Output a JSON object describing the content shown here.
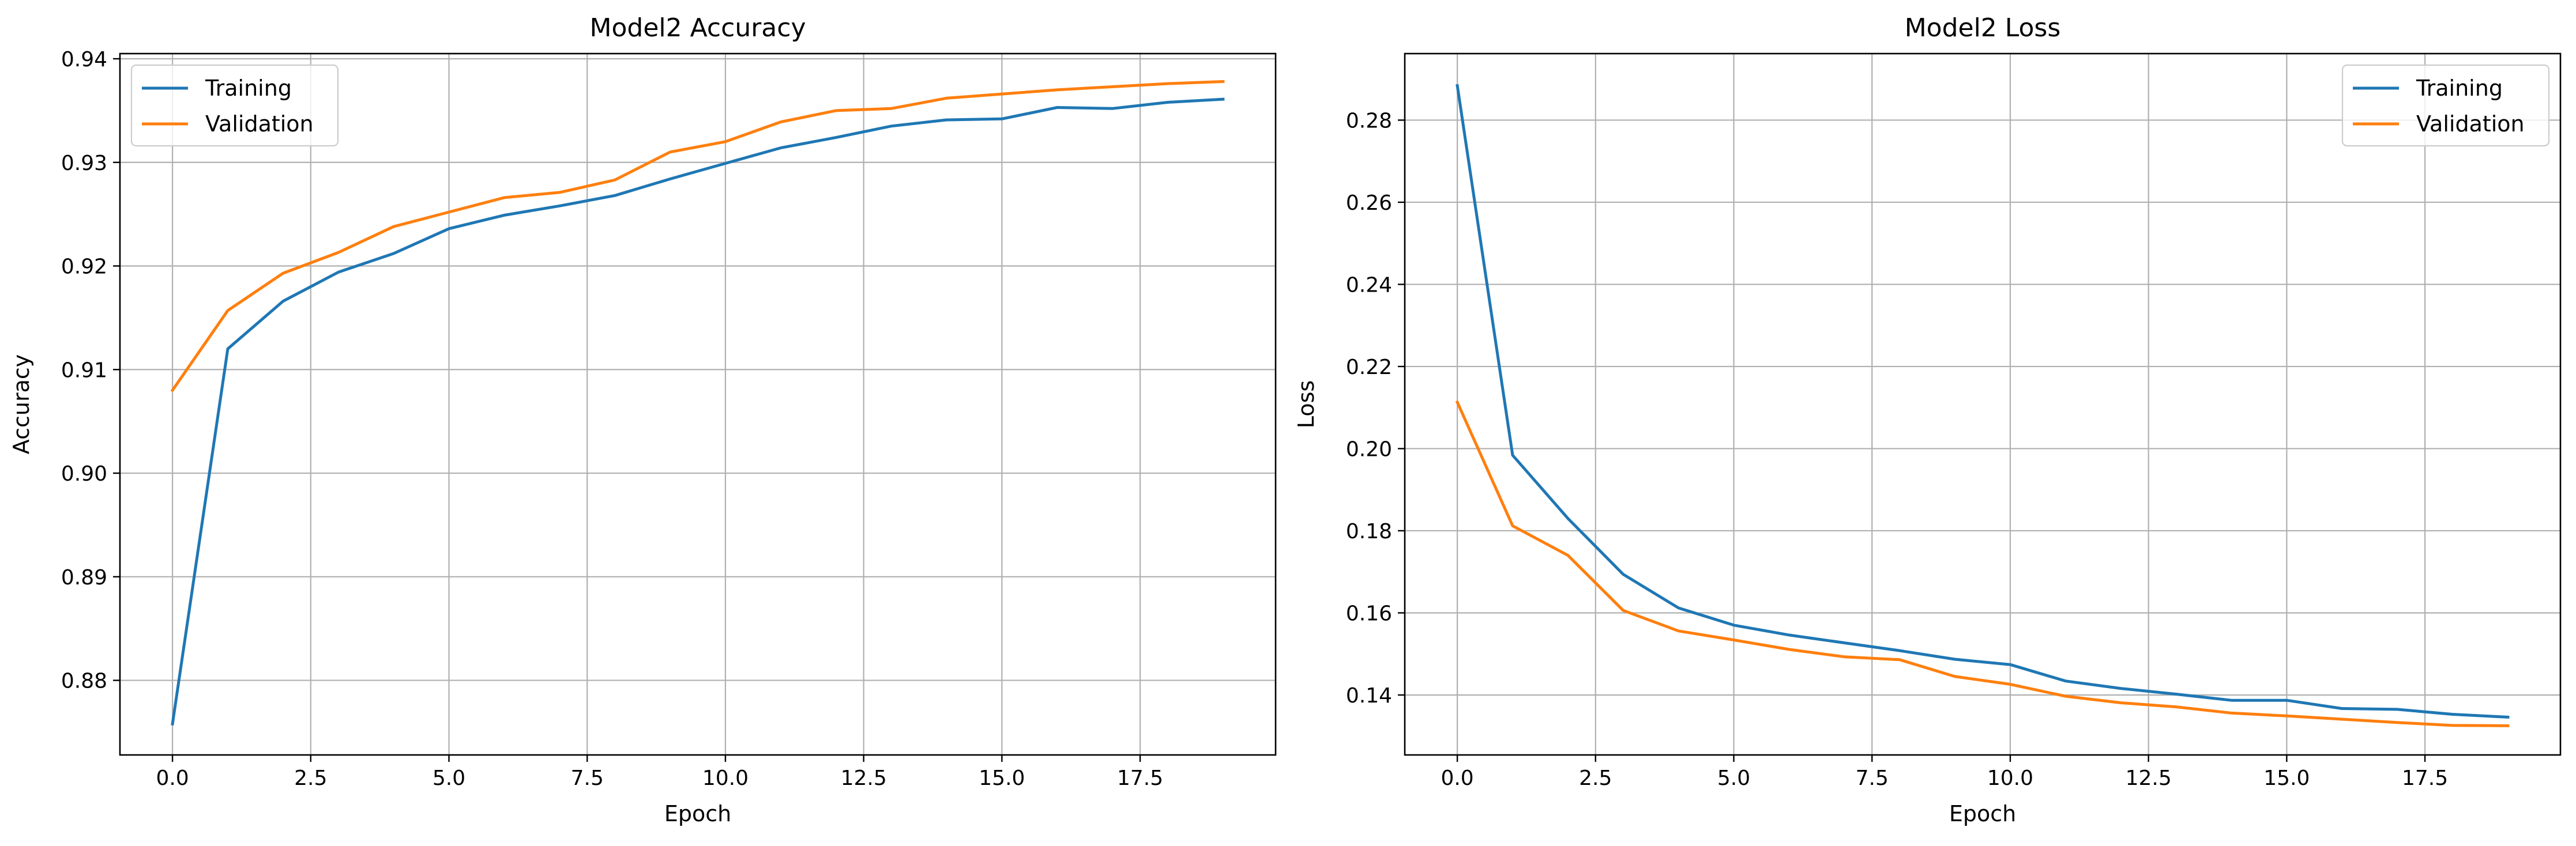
{
  "chart_data": [
    {
      "type": "line",
      "title": "Model2 Accuracy",
      "xlabel": "Epoch",
      "ylabel": "Accuracy",
      "xlim": [
        -0.95,
        19.95
      ],
      "ylim": [
        0.8728,
        0.9405
      ],
      "xticks": [
        0,
        2.5,
        5,
        7.5,
        10,
        12.5,
        15,
        17.5
      ],
      "xtick_labels": [
        "0.0",
        "2.5",
        "5.0",
        "7.5",
        "10.0",
        "12.5",
        "15.0",
        "17.5"
      ],
      "yticks": [
        0.88,
        0.89,
        0.9,
        0.91,
        0.92,
        0.93,
        0.94
      ],
      "ytick_labels": [
        "0.88",
        "0.89",
        "0.90",
        "0.91",
        "0.92",
        "0.93",
        "0.94"
      ],
      "grid": true,
      "legend_position": "top-left",
      "x": [
        0,
        1,
        2,
        3,
        4,
        5,
        6,
        7,
        8,
        9,
        10,
        11,
        12,
        13,
        14,
        15,
        16,
        17,
        18,
        19
      ],
      "series": [
        {
          "name": "Training",
          "color": "#1f77b4",
          "values": [
            0.8758,
            0.912,
            0.9166,
            0.9194,
            0.9212,
            0.9236,
            0.9249,
            0.9258,
            0.9268,
            0.9284,
            0.9299,
            0.9314,
            0.9324,
            0.9335,
            0.9341,
            0.9342,
            0.9353,
            0.9352,
            0.9358,
            0.9361
          ]
        },
        {
          "name": "Validation",
          "color": "#ff7f0e",
          "values": [
            0.908,
            0.9157,
            0.9193,
            0.9213,
            0.9238,
            0.9252,
            0.9266,
            0.9271,
            0.9283,
            0.931,
            0.932,
            0.9339,
            0.935,
            0.9352,
            0.9362,
            0.9366,
            0.937,
            0.9373,
            0.9376,
            0.9378
          ]
        }
      ]
    },
    {
      "type": "line",
      "title": "Model2 Loss",
      "xlabel": "Epoch",
      "ylabel": "Loss",
      "xlim": [
        -0.95,
        19.95
      ],
      "ylim": [
        0.1254,
        0.2962
      ],
      "xticks": [
        0,
        2.5,
        5,
        7.5,
        10,
        12.5,
        15,
        17.5
      ],
      "xtick_labels": [
        "0.0",
        "2.5",
        "5.0",
        "7.5",
        "10.0",
        "12.5",
        "15.0",
        "17.5"
      ],
      "yticks": [
        0.14,
        0.16,
        0.18,
        0.2,
        0.22,
        0.24,
        0.26,
        0.28
      ],
      "ytick_labels": [
        "0.14",
        "0.16",
        "0.18",
        "0.20",
        "0.22",
        "0.24",
        "0.26",
        "0.28"
      ],
      "grid": true,
      "legend_position": "top-right",
      "x": [
        0,
        1,
        2,
        3,
        4,
        5,
        6,
        7,
        8,
        9,
        10,
        11,
        12,
        13,
        14,
        15,
        16,
        17,
        18,
        19
      ],
      "series": [
        {
          "name": "Training",
          "color": "#1f77b4",
          "values": [
            0.2884,
            0.1984,
            0.183,
            0.1694,
            0.1612,
            0.157,
            0.1546,
            0.1527,
            0.1508,
            0.1487,
            0.1474,
            0.1434,
            0.1416,
            0.1402,
            0.1387,
            0.1387,
            0.1367,
            0.1365,
            0.1353,
            0.1346
          ]
        },
        {
          "name": "Validation",
          "color": "#ff7f0e",
          "values": [
            0.2113,
            0.1812,
            0.174,
            0.1606,
            0.1556,
            0.1534,
            0.1511,
            0.1493,
            0.1486,
            0.1445,
            0.1426,
            0.1397,
            0.1381,
            0.1371,
            0.1356,
            0.1349,
            0.1341,
            0.1333,
            0.1326,
            0.1325
          ]
        }
      ]
    }
  ]
}
